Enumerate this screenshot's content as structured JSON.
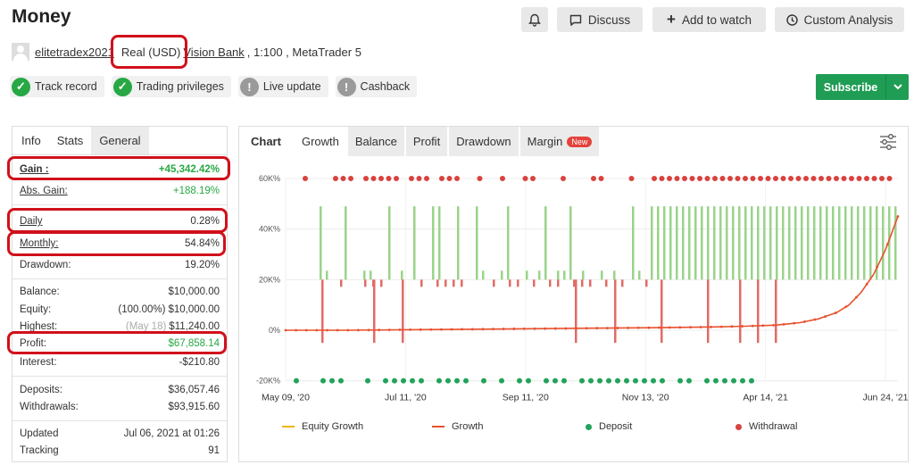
{
  "header": {
    "title": "Money",
    "buttons": {
      "bell": "",
      "discuss": "Discuss",
      "watch": "Add to watch",
      "analysis": "Custom Analysis"
    }
  },
  "account": {
    "user": "elitetradex2021",
    "type": "Real (USD)",
    "broker": "Vision Bank",
    "details": ", 1:100 , MetaTrader 5"
  },
  "badges": [
    "Track record",
    "Trading privileges",
    "Live update",
    "Cashback"
  ],
  "subscribe": "Subscribe",
  "stats_tabs": [
    "Info",
    "Stats",
    "General"
  ],
  "stats": {
    "gain": {
      "k": "Gain :",
      "v": "+45,342.42%"
    },
    "abs_gain": {
      "k": "Abs. Gain:",
      "v": "+188.19%"
    },
    "daily": {
      "k": "Daily",
      "v": "0.28%"
    },
    "monthly": {
      "k": "Monthly:",
      "v": "54.84%"
    },
    "drawdown": {
      "k": "Drawdown:",
      "v": "19.20%"
    },
    "balance": {
      "k": "Balance:",
      "v": "$10,000.00"
    },
    "equity": {
      "k": "Equity:",
      "pre": "(100.00%)",
      "v": "$10,000.00"
    },
    "highest": {
      "k": "Highest:",
      "pre": "(May 18)",
      "v": "$11,240.00"
    },
    "profit": {
      "k": "Profit:",
      "v": "$67,858.14"
    },
    "interest": {
      "k": "Interest:",
      "v": "-$210.80"
    },
    "deposits": {
      "k": "Deposits:",
      "v": "$36,057.46"
    },
    "withdrawals": {
      "k": "Withdrawals:",
      "v": "$93,915.60"
    },
    "updated": {
      "k": "Updated",
      "v": "Jul 06, 2021 at 01:26"
    },
    "tracking": {
      "k": "Tracking",
      "v": "91"
    }
  },
  "chart_tabs": {
    "label": "Chart",
    "tabs": [
      "Growth",
      "Balance",
      "Profit",
      "Drawdown",
      "Margin"
    ],
    "new": "New"
  },
  "chart_data": {
    "type": "line",
    "title": "",
    "xlabel": "",
    "ylabel": "",
    "ylim": [
      -20,
      60
    ],
    "y_ticks": [
      "60K%",
      "40K%",
      "20K%",
      "0%",
      "-20K%"
    ],
    "x_ticks": [
      "May 09, '20",
      "Jul 11, '20",
      "Sep 11, '20",
      "Nov 13, '20",
      "Apr 14, '21",
      "Jun 24, '21"
    ],
    "growth": {
      "x_frac": [
        0,
        0.1,
        0.2,
        0.3,
        0.4,
        0.5,
        0.6,
        0.7,
        0.75,
        0.8,
        0.84,
        0.87,
        0.9,
        0.92,
        0.94,
        0.96,
        0.98,
        1.0
      ],
      "y": [
        0,
        0,
        0.2,
        0.4,
        0.6,
        0.8,
        1,
        1.3,
        1.6,
        2,
        3,
        4.5,
        7,
        10,
        15,
        22,
        32,
        45
      ]
    },
    "series": [
      {
        "name": "Equity Growth",
        "color": "#f0b400"
      },
      {
        "name": "Growth",
        "color": "#e8512f"
      },
      {
        "name": "Deposit",
        "color": "#21a35a"
      },
      {
        "name": "Withdrawal",
        "color": "#d9423e"
      }
    ],
    "legend": "bottom"
  }
}
